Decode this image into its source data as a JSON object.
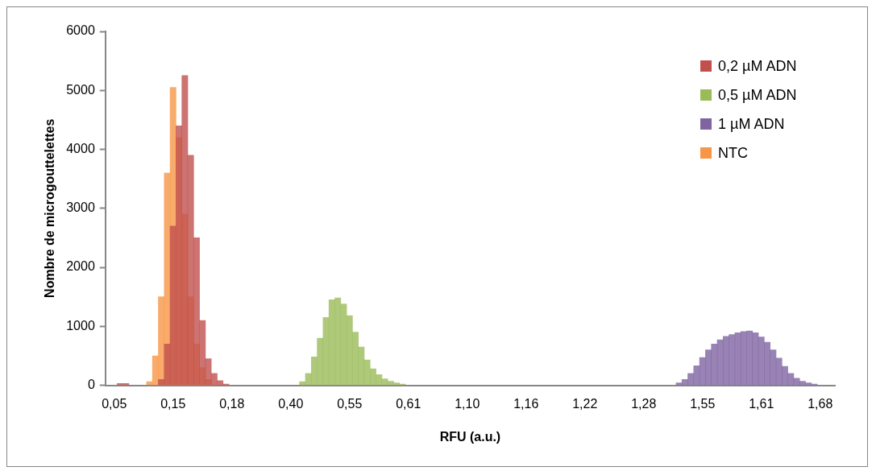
{
  "chart_data": {
    "type": "bar",
    "xlabel": "RFU (a.u.)",
    "ylabel": "Nombre de microgouttelettes",
    "categories": [
      null,
      "0,05",
      null,
      null,
      null,
      null,
      null,
      null,
      null,
      null,
      null,
      "0,15",
      null,
      null,
      null,
      null,
      null,
      null,
      null,
      null,
      null,
      "0,18",
      null,
      null,
      null,
      null,
      null,
      null,
      null,
      null,
      null,
      "0,40",
      null,
      null,
      null,
      null,
      null,
      null,
      null,
      null,
      null,
      "0,55",
      null,
      null,
      null,
      null,
      null,
      null,
      null,
      null,
      null,
      "0,61",
      null,
      null,
      null,
      null,
      null,
      null,
      null,
      null,
      null,
      "1,10",
      null,
      null,
      null,
      null,
      null,
      null,
      null,
      null,
      null,
      "1,16",
      null,
      null,
      null,
      null,
      null,
      null,
      null,
      null,
      null,
      "1,22",
      null,
      null,
      null,
      null,
      null,
      null,
      null,
      null,
      null,
      "1,28",
      null,
      null,
      null,
      null,
      null,
      null,
      null,
      null,
      null,
      "1,55",
      null,
      null,
      null,
      null,
      null,
      null,
      null,
      null,
      null,
      "1,61",
      null,
      null,
      null,
      null,
      null,
      null,
      null,
      null,
      null,
      "1,68",
      null,
      null
    ],
    "series": [
      {
        "name": "0,2 µM ADN",
        "color": "#c0504d",
        "values": [
          null,
          null,
          30,
          30,
          null,
          null,
          null,
          null,
          null,
          100,
          700,
          2700,
          4400,
          5250,
          3900,
          2500,
          1100,
          450,
          200,
          80,
          20,
          null,
          null,
          null,
          null,
          null,
          null,
          null,
          null,
          null,
          null,
          null,
          null,
          null,
          null,
          null,
          null,
          null,
          null,
          null,
          null,
          null,
          null,
          null,
          null,
          null,
          null,
          null,
          null,
          null,
          null,
          null,
          null,
          null,
          null,
          null,
          null,
          null,
          null,
          null,
          null,
          null,
          null,
          null,
          null,
          null,
          null,
          null,
          null,
          null,
          null,
          null,
          null,
          null,
          null,
          null,
          null,
          null,
          null,
          null,
          null,
          null,
          null,
          null,
          null,
          null,
          null,
          null,
          null,
          null,
          null,
          null,
          null,
          null,
          null,
          null,
          null,
          null,
          null,
          null,
          null,
          null,
          null,
          null,
          null,
          null,
          null,
          null,
          null,
          null,
          null,
          null,
          null,
          null,
          null,
          null,
          null,
          null,
          null,
          null,
          null,
          null,
          null,
          null
        ]
      },
      {
        "name": "0,5 µM ADN",
        "color": "#9bbb59",
        "values": [
          null,
          null,
          null,
          null,
          null,
          null,
          null,
          null,
          null,
          null,
          null,
          null,
          null,
          null,
          null,
          null,
          null,
          null,
          null,
          null,
          null,
          null,
          null,
          null,
          null,
          null,
          null,
          null,
          null,
          null,
          null,
          null,
          null,
          60,
          200,
          480,
          800,
          1150,
          1450,
          1480,
          1380,
          1180,
          900,
          650,
          430,
          280,
          180,
          110,
          70,
          40,
          20,
          null,
          null,
          null,
          null,
          null,
          null,
          null,
          null,
          null,
          null,
          null,
          null,
          null,
          null,
          null,
          null,
          null,
          null,
          null,
          null,
          null,
          null,
          null,
          null,
          null,
          null,
          null,
          null,
          null,
          null,
          null,
          null,
          null,
          null,
          null,
          null,
          null,
          null,
          null,
          null,
          null,
          null,
          null,
          null,
          null,
          null,
          null,
          null,
          null,
          null,
          null,
          null,
          null,
          null,
          null,
          null,
          null,
          null,
          null,
          null,
          null,
          null,
          null,
          null,
          null,
          null,
          null,
          null,
          null,
          null,
          null,
          null,
          null
        ]
      },
      {
        "name": "1 µM ADN",
        "color": "#8064a2",
        "values": [
          null,
          null,
          null,
          null,
          null,
          null,
          null,
          null,
          null,
          null,
          null,
          null,
          null,
          null,
          null,
          null,
          null,
          null,
          null,
          null,
          null,
          null,
          null,
          null,
          null,
          null,
          null,
          null,
          null,
          null,
          null,
          null,
          null,
          null,
          null,
          null,
          null,
          null,
          null,
          null,
          null,
          null,
          null,
          null,
          null,
          null,
          null,
          null,
          null,
          null,
          null,
          null,
          null,
          null,
          null,
          null,
          null,
          null,
          null,
          null,
          null,
          null,
          null,
          null,
          null,
          null,
          null,
          null,
          null,
          null,
          null,
          null,
          null,
          null,
          null,
          null,
          null,
          null,
          null,
          null,
          null,
          null,
          null,
          null,
          null,
          null,
          null,
          null,
          null,
          null,
          null,
          null,
          null,
          null,
          null,
          null,
          null,
          40,
          100,
          200,
          330,
          470,
          600,
          700,
          770,
          830,
          860,
          890,
          910,
          920,
          890,
          820,
          730,
          600,
          460,
          320,
          200,
          120,
          70,
          40,
          20,
          null,
          null,
          null
        ]
      },
      {
        "name": "NTC",
        "color": "#f79646",
        "values": [
          null,
          null,
          null,
          null,
          null,
          null,
          null,
          60,
          500,
          1500,
          3600,
          5050,
          4200,
          2900,
          1500,
          700,
          300,
          100,
          null,
          null,
          null,
          null,
          null,
          null,
          null,
          null,
          null,
          null,
          null,
          null,
          null,
          null,
          null,
          null,
          null,
          null,
          null,
          null,
          null,
          null,
          null,
          null,
          null,
          null,
          null,
          null,
          null,
          null,
          null,
          null,
          null,
          null,
          null,
          null,
          null,
          null,
          null,
          null,
          null,
          null,
          null,
          null,
          null,
          null,
          null,
          null,
          null,
          null,
          null,
          null,
          null,
          null,
          null,
          null,
          null,
          null,
          null,
          null,
          null,
          null,
          null,
          null,
          null,
          null,
          null,
          null,
          null,
          null,
          null,
          null,
          null,
          null,
          null,
          null,
          null,
          null,
          null,
          null,
          null,
          null,
          null,
          null,
          null,
          null,
          null,
          null,
          null,
          null,
          null,
          null,
          null,
          null,
          null,
          null,
          null,
          null,
          null,
          null,
          null,
          null,
          null,
          null,
          null,
          null
        ]
      }
    ],
    "ylim": [
      0,
      6000
    ],
    "yticks": [
      0,
      1000,
      2000,
      3000,
      4000,
      5000,
      6000
    ],
    "grid": false,
    "legend": "top right"
  }
}
